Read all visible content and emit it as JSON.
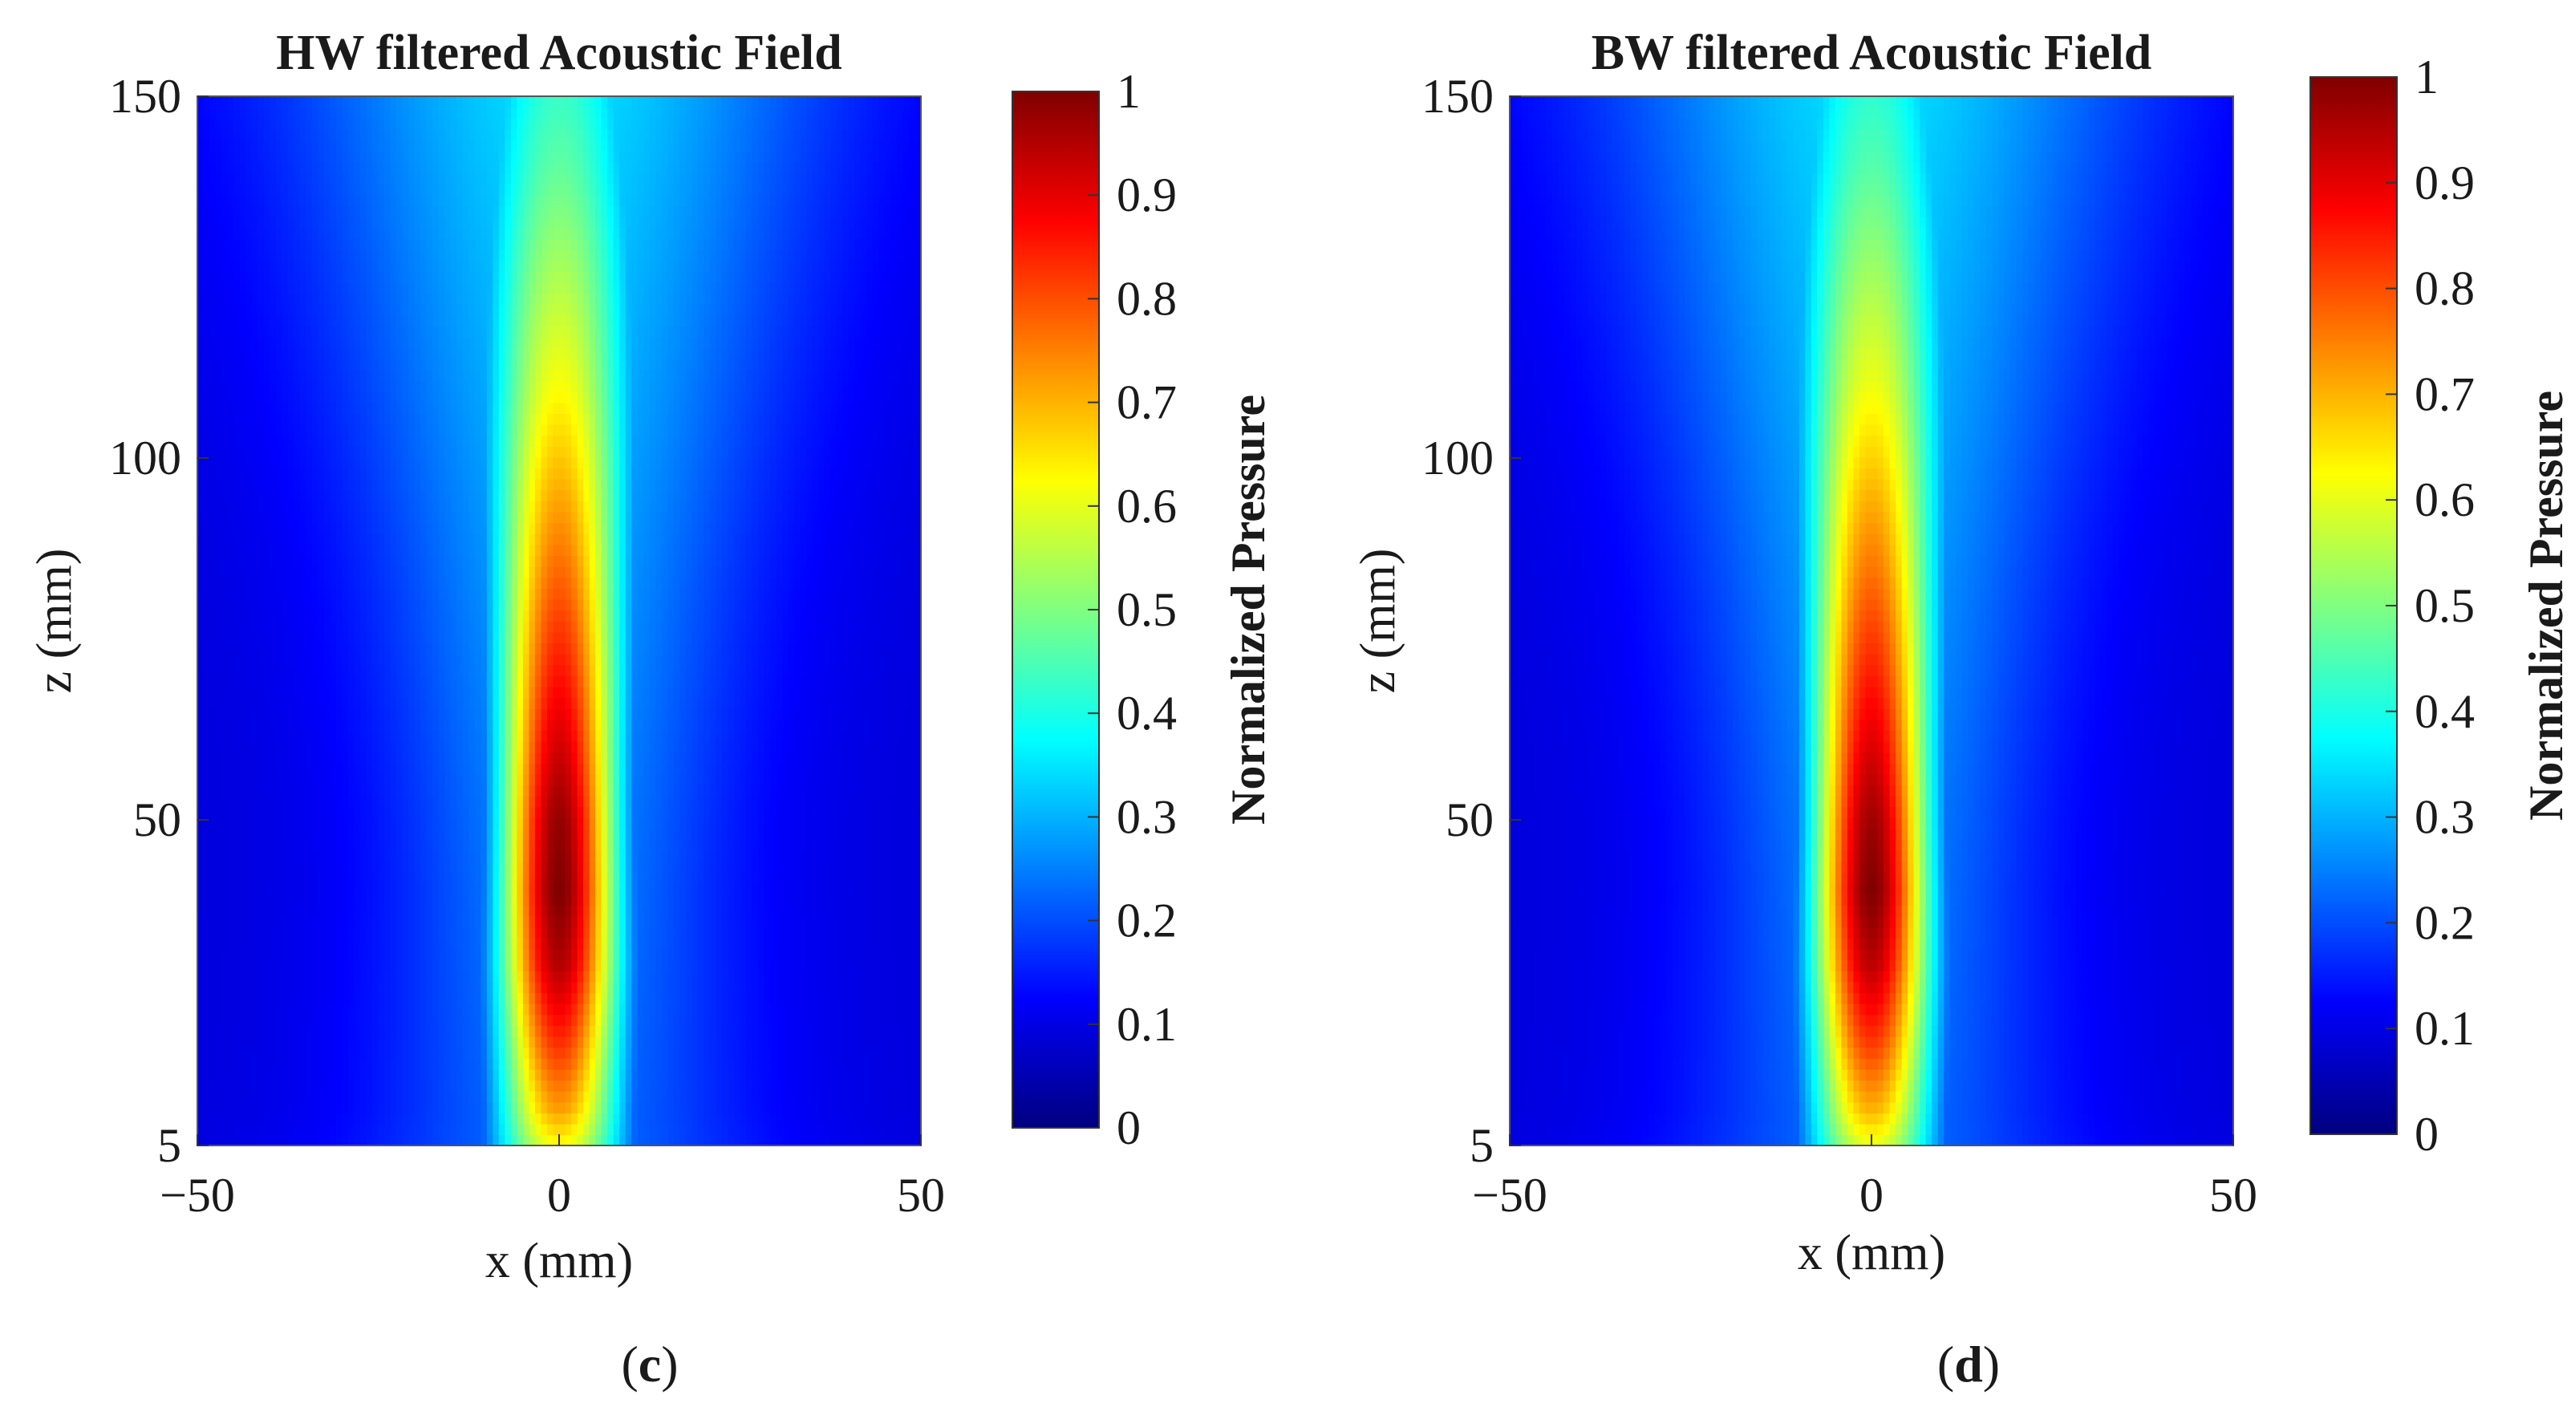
{
  "colormap": {
    "name": "jet",
    "stops": [
      "#00007f",
      "#0000ff",
      "#0080ff",
      "#00ffff",
      "#80ff80",
      "#ffff00",
      "#ff8000",
      "#ff0000",
      "#7f0000"
    ]
  },
  "chart_data": [
    {
      "type": "heatmap",
      "title": "HW filtered Acoustic Field",
      "panel_open": "(",
      "panel_letter": "c",
      "panel_close": ")",
      "xlabel": "x (mm)",
      "ylabel": "z (mm)",
      "colorbar_label": "Normalized Pressure",
      "xlim": [
        -50,
        50
      ],
      "ylim": [
        5,
        150
      ],
      "clim": [
        0,
        1
      ],
      "x_ticks": [
        -50,
        0,
        50
      ],
      "x_tick_labels": [
        "−50",
        "0",
        "50"
      ],
      "y_ticks": [
        5,
        50,
        100,
        150
      ],
      "y_tick_labels": [
        "5",
        "50",
        "100",
        "150"
      ],
      "colorbar_ticks": [
        0,
        0.1,
        0.2,
        0.3,
        0.4,
        0.5,
        0.6,
        0.7,
        0.8,
        0.9,
        1
      ],
      "colorbar_tick_labels": [
        "0",
        "0.1",
        "0.2",
        "0.3",
        "0.4",
        "0.5",
        "0.6",
        "0.7",
        "0.8",
        "0.9",
        "1"
      ],
      "beam_profile": [
        {
          "z": 5,
          "peak": 0.62,
          "halfwidth_mm": 8.0
        },
        {
          "z": 10,
          "peak": 0.72,
          "halfwidth_mm": 7.5
        },
        {
          "z": 20,
          "peak": 0.84,
          "halfwidth_mm": 7.2
        },
        {
          "z": 30,
          "peak": 0.95,
          "halfwidth_mm": 7.0
        },
        {
          "z": 40,
          "peak": 1.0,
          "halfwidth_mm": 6.8
        },
        {
          "z": 50,
          "peak": 0.98,
          "halfwidth_mm": 6.8
        },
        {
          "z": 60,
          "peak": 0.92,
          "halfwidth_mm": 7.0
        },
        {
          "z": 70,
          "peak": 0.86,
          "halfwidth_mm": 7.3
        },
        {
          "z": 80,
          "peak": 0.8,
          "halfwidth_mm": 7.6
        },
        {
          "z": 90,
          "peak": 0.74,
          "halfwidth_mm": 8.0
        },
        {
          "z": 100,
          "peak": 0.68,
          "halfwidth_mm": 8.5
        },
        {
          "z": 110,
          "peak": 0.62,
          "halfwidth_mm": 9.0
        },
        {
          "z": 120,
          "peak": 0.57,
          "halfwidth_mm": 9.5
        },
        {
          "z": 130,
          "peak": 0.52,
          "halfwidth_mm": 10.0
        },
        {
          "z": 140,
          "peak": 0.47,
          "halfwidth_mm": 10.5
        },
        {
          "z": 150,
          "peak": 0.43,
          "halfwidth_mm": 11.0
        }
      ]
    },
    {
      "type": "heatmap",
      "title": "BW filtered Acoustic Field",
      "panel_open": "(",
      "panel_letter": "d",
      "panel_close": ")",
      "xlabel": "x (mm)",
      "ylabel": "z (mm)",
      "colorbar_label": "Normalized Pressure",
      "xlim": [
        -50,
        50
      ],
      "ylim": [
        5,
        150
      ],
      "clim": [
        0,
        1
      ],
      "x_ticks": [
        -50,
        0,
        50
      ],
      "x_tick_labels": [
        "−50",
        "0",
        "50"
      ],
      "y_ticks": [
        5,
        50,
        100,
        150
      ],
      "y_tick_labels": [
        "5",
        "50",
        "100",
        "150"
      ],
      "colorbar_ticks": [
        0,
        0.1,
        0.2,
        0.3,
        0.4,
        0.5,
        0.6,
        0.7,
        0.8,
        0.9,
        1
      ],
      "colorbar_tick_labels": [
        "0",
        "0.1",
        "0.2",
        "0.3",
        "0.4",
        "0.5",
        "0.6",
        "0.7",
        "0.8",
        "0.9",
        "1"
      ],
      "beam_profile": [
        {
          "z": 5,
          "peak": 0.6,
          "halfwidth_mm": 8.0
        },
        {
          "z": 10,
          "peak": 0.7,
          "halfwidth_mm": 7.5
        },
        {
          "z": 20,
          "peak": 0.83,
          "halfwidth_mm": 7.2
        },
        {
          "z": 30,
          "peak": 0.94,
          "halfwidth_mm": 7.0
        },
        {
          "z": 40,
          "peak": 1.0,
          "halfwidth_mm": 6.8
        },
        {
          "z": 50,
          "peak": 0.97,
          "halfwidth_mm": 6.8
        },
        {
          "z": 60,
          "peak": 0.91,
          "halfwidth_mm": 7.0
        },
        {
          "z": 70,
          "peak": 0.85,
          "halfwidth_mm": 7.3
        },
        {
          "z": 80,
          "peak": 0.79,
          "halfwidth_mm": 7.6
        },
        {
          "z": 90,
          "peak": 0.73,
          "halfwidth_mm": 8.0
        },
        {
          "z": 100,
          "peak": 0.67,
          "halfwidth_mm": 8.5
        },
        {
          "z": 110,
          "peak": 0.61,
          "halfwidth_mm": 9.0
        },
        {
          "z": 120,
          "peak": 0.56,
          "halfwidth_mm": 9.5
        },
        {
          "z": 130,
          "peak": 0.51,
          "halfwidth_mm": 10.0
        },
        {
          "z": 140,
          "peak": 0.46,
          "halfwidth_mm": 10.5
        },
        {
          "z": 150,
          "peak": 0.42,
          "halfwidth_mm": 11.0
        }
      ]
    }
  ]
}
